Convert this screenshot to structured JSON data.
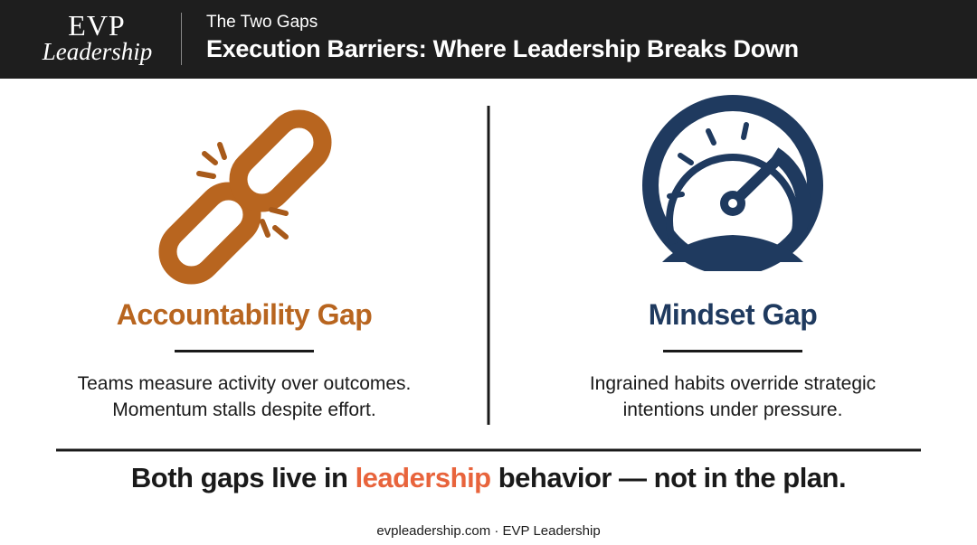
{
  "header": {
    "logo_top": "EVP",
    "logo_bottom": "Leadership",
    "subtitle": "The Two Gaps",
    "title": "Execution Barriers: Where Leadership Breaks Down"
  },
  "columns": [
    {
      "title": "Accountability Gap",
      "lines": [
        "Teams measure activity over outcomes.",
        "Momentum stalls despite effort."
      ]
    },
    {
      "title": "Mindset Gap",
      "lines": [
        "Ingrained habits override strategic",
        "intentions under pressure."
      ]
    }
  ],
  "statement": {
    "before": "Both gaps live in ",
    "highlight": "leadership",
    "after": " behavior — not in the plan."
  },
  "footer": "evpleadership.com · EVP Leadership"
}
